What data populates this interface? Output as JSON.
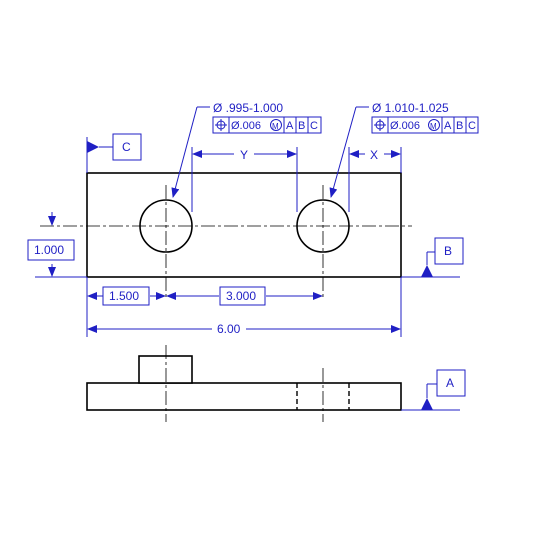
{
  "hole_callouts": {
    "left": {
      "size": "Ø .995-1.000",
      "fcf": {
        "position_symbol": "⌖",
        "tolerance": "Ø.006",
        "modifier": "M",
        "datum_primary": "A",
        "datum_secondary": "B",
        "datum_tertiary": "C"
      }
    },
    "right": {
      "size": "Ø 1.010-1.025",
      "fcf": {
        "position_symbol": "⌖",
        "tolerance": "Ø.006",
        "modifier": "M",
        "datum_primary": "A",
        "datum_secondary": "B",
        "datum_tertiary": "C"
      }
    }
  },
  "dimensions": {
    "y_label": "Y",
    "x_label": "X",
    "hole_height": "1.000",
    "left_hole_offset": "1.500",
    "hole_spacing": "3.000",
    "overall_length": "6.00"
  },
  "datums": {
    "a": "A",
    "b": "B",
    "c": "C"
  },
  "colors": {
    "outline": "#000000",
    "annotation": "#1f1fc4"
  }
}
